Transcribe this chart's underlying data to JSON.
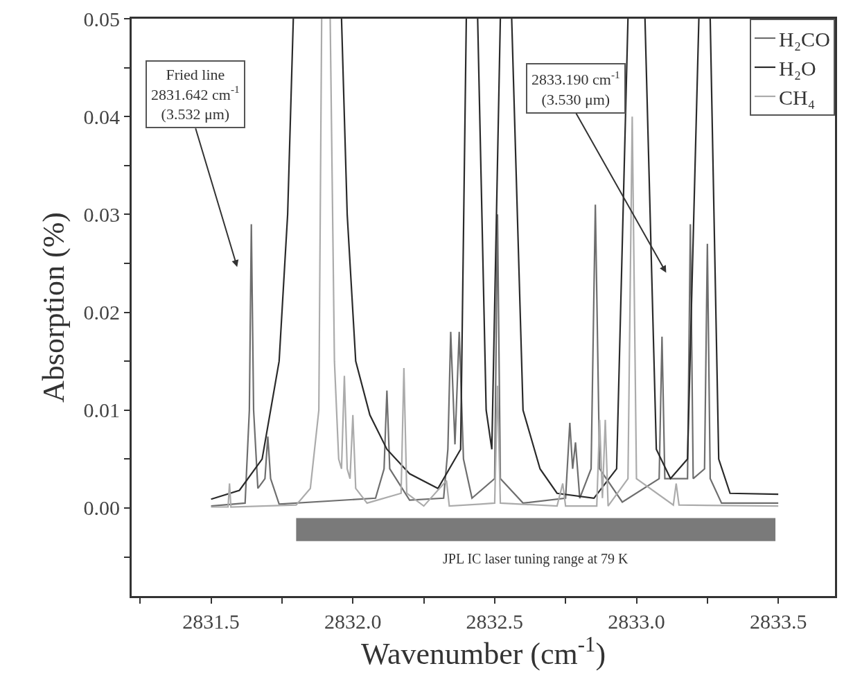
{
  "chart_data": {
    "type": "line",
    "xlabel": "Wavenumber (cm$^{-1}$)",
    "ylabel": "Absorption (%)",
    "xlim": [
      2831.22,
      2833.7
    ],
    "ylim": [
      -0.009,
      0.05
    ],
    "xticks": [
      {
        "value": 2831.25,
        "label": null
      },
      2831.5,
      {
        "value": 2831.75,
        "label": null
      },
      {
        "value": 2832,
        "label": "2832.0"
      },
      {
        "value": 2832.25,
        "label": null
      },
      2832.5,
      {
        "value": 2832.75,
        "label": null
      },
      {
        "value": 2833,
        "label": "2833.0"
      },
      {
        "value": 2833.25,
        "label": null
      },
      2833.5
    ],
    "yticks": [
      {
        "value": -0.005,
        "label": null
      },
      {
        "value": 0,
        "label": "0.00"
      },
      {
        "value": 0.005,
        "label": null
      },
      {
        "value": 0.01,
        "label": "0.01"
      },
      {
        "value": 0.015,
        "label": null
      },
      {
        "value": 0.02,
        "label": "0.02"
      },
      {
        "value": 0.025,
        "label": null
      },
      {
        "value": 0.03,
        "label": "0.03"
      },
      {
        "value": 0.035,
        "label": null
      },
      {
        "value": 0.04,
        "label": "0.04"
      },
      {
        "value": 0.045,
        "label": null
      },
      {
        "value": 0.05,
        "label": "0.05"
      }
    ],
    "grid": false,
    "legend": "top right",
    "line_style": "solid",
    "series": [
      {
        "name": "H₂CO",
        "color": "#6e6e6e",
        "x": [
          2831.5,
          2831.62,
          2831.635,
          2831.642,
          2831.65,
          2831.665,
          2831.69,
          2831.7,
          2831.71,
          2831.74,
          2832.08,
          2832.11,
          2832.12,
          2832.13,
          2832.2,
          2832.32,
          2832.335,
          2832.345,
          2832.36,
          2832.375,
          2832.39,
          2832.42,
          2832.5,
          2832.51,
          2832.52,
          2832.6,
          2832.75,
          2832.765,
          2832.775,
          2832.785,
          2832.8,
          2832.84,
          2832.855,
          2832.87,
          2832.95,
          2833.08,
          2833.09,
          2833.1,
          2833.18,
          2833.19,
          2833.2,
          2833.24,
          2833.25,
          2833.26,
          2833.3,
          2833.5
        ],
        "values": [
          0.0002,
          0.0005,
          0.01,
          0.029,
          0.01,
          0.002,
          0.003,
          0.0073,
          0.003,
          0.0004,
          0.001,
          0.004,
          0.012,
          0.004,
          0.0008,
          0.001,
          0.006,
          0.018,
          0.0065,
          0.018,
          0.005,
          0.001,
          0.003,
          0.03,
          0.003,
          0.0005,
          0.001,
          0.0087,
          0.004,
          0.0067,
          0.001,
          0.004,
          0.031,
          0.004,
          0.0006,
          0.003,
          0.0175,
          0.003,
          0.003,
          0.029,
          0.003,
          0.004,
          0.027,
          0.003,
          0.0005,
          0.0005
        ]
      },
      {
        "name": "H₂O",
        "color": "#2a2a2a",
        "x": [
          2831.5,
          2831.6,
          2831.68,
          2831.74,
          2831.77,
          2831.79,
          2831.87,
          2831.96,
          2831.98,
          2832.01,
          2832.06,
          2832.12,
          2832.2,
          2832.3,
          2832.38,
          2832.4,
          2832.42,
          2832.44,
          2832.47,
          2832.49,
          2832.52,
          2832.54,
          2832.56,
          2832.6,
          2832.66,
          2832.72,
          2832.85,
          2832.93,
          2832.97,
          2833.0,
          2833.03,
          2833.07,
          2833.12,
          2833.18,
          2833.22,
          2833.24,
          2833.26,
          2833.29,
          2833.33,
          2833.5
        ],
        "values": [
          0.0009,
          0.0018,
          0.005,
          0.015,
          0.03,
          0.05,
          null,
          0.05,
          0.03,
          0.015,
          0.0095,
          0.006,
          0.0035,
          0.002,
          0.006,
          0.05,
          null,
          0.05,
          0.01,
          0.006,
          0.05,
          null,
          0.05,
          0.01,
          0.004,
          0.0015,
          0.001,
          0.004,
          0.05,
          null,
          0.05,
          0.006,
          0.003,
          0.005,
          0.05,
          null,
          0.05,
          0.005,
          0.0015,
          0.0014
        ]
      },
      {
        "name": "CH₄",
        "color": "#ababab",
        "x": [
          2831.5,
          2831.56,
          2831.565,
          2831.57,
          2831.8,
          2831.85,
          2831.88,
          2831.89,
          2831.91,
          2831.92,
          2831.935,
          2831.95,
          2831.96,
          2831.97,
          2831.98,
          2831.99,
          2832.0,
          2832.01,
          2832.05,
          2832.17,
          2832.18,
          2832.19,
          2832.25,
          2832.33,
          2832.34,
          2832.45,
          2832.5,
          2832.51,
          2832.52,
          2832.72,
          2832.74,
          2832.75,
          2832.86,
          2832.87,
          2832.88,
          2832.89,
          2832.9,
          2832.97,
          2832.985,
          2833.0,
          2833.13,
          2833.14,
          2833.15,
          2833.5
        ],
        "values": [
          0.0001,
          0.0001,
          0.0025,
          0.0001,
          0.0003,
          0.002,
          0.01,
          0.05,
          null,
          0.05,
          0.015,
          0.005,
          0.004,
          0.0135,
          0.004,
          0.003,
          0.0095,
          0.002,
          0.0005,
          0.0015,
          0.0143,
          0.0015,
          0.0002,
          0.0028,
          0.0002,
          0.0004,
          0.0005,
          0.0125,
          0.0005,
          0.0002,
          0.0025,
          0.0002,
          0.0002,
          0.009,
          0.001,
          0.009,
          0.0002,
          0.003,
          0.04,
          0.003,
          0.0003,
          0.0025,
          0.0003,
          0.0002
        ]
      }
    ],
    "bands": [
      {
        "axis": "x",
        "from": 2831.8,
        "to": 2833.49,
        "label": "JPL IC laser tuning range at 79 K",
        "color": "#7a7a7a"
      }
    ],
    "annotations": [
      "Fried line\n2831.642 cm$^{-1}$\n(3.532 μm)",
      "2833.190 cm$^{-1}$\n(3.530 μm)"
    ]
  }
}
